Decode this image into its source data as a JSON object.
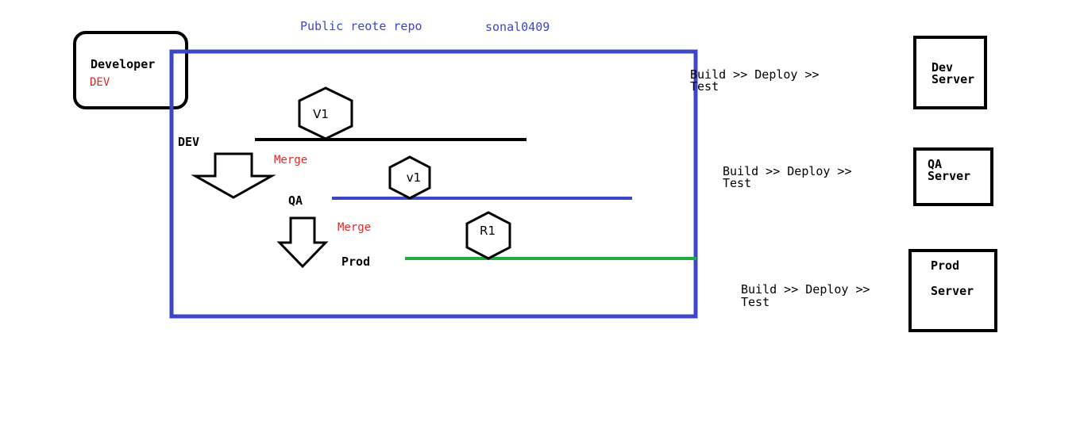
{
  "colors": {
    "repo": "#3c46c8",
    "text_blue": "#3c46c8",
    "merge_red": "#e02828",
    "dev_line": "#000000",
    "qa_line": "#3c46c8",
    "prod_line": "#22aa44"
  },
  "repo": {
    "title": "Public reote repo",
    "user": "sonal0409"
  },
  "developer": {
    "label": "Developer",
    "env": "DEV"
  },
  "branches": {
    "dev": {
      "label": "DEV",
      "tag": "V1"
    },
    "qa": {
      "label": "QA",
      "tag": "v1"
    },
    "prod": {
      "label": "Prod",
      "tag": "R1"
    }
  },
  "merges": {
    "dev_to_qa": "Merge",
    "qa_to_prod": "Merge"
  },
  "pipelines": {
    "dev": {
      "line1": "Build >> Deploy >>",
      "line2": "Test"
    },
    "qa": {
      "line1": "Build >> Deploy >>",
      "line2": "Test"
    },
    "prod": {
      "line1": "Build >> Deploy >>",
      "line2": "Test"
    }
  },
  "servers": {
    "dev": {
      "line1": "Dev",
      "line2": "Server"
    },
    "qa": {
      "line1": "QA",
      "line2": "Server"
    },
    "prod": {
      "line1": "Prod",
      "line2": "Server"
    }
  }
}
